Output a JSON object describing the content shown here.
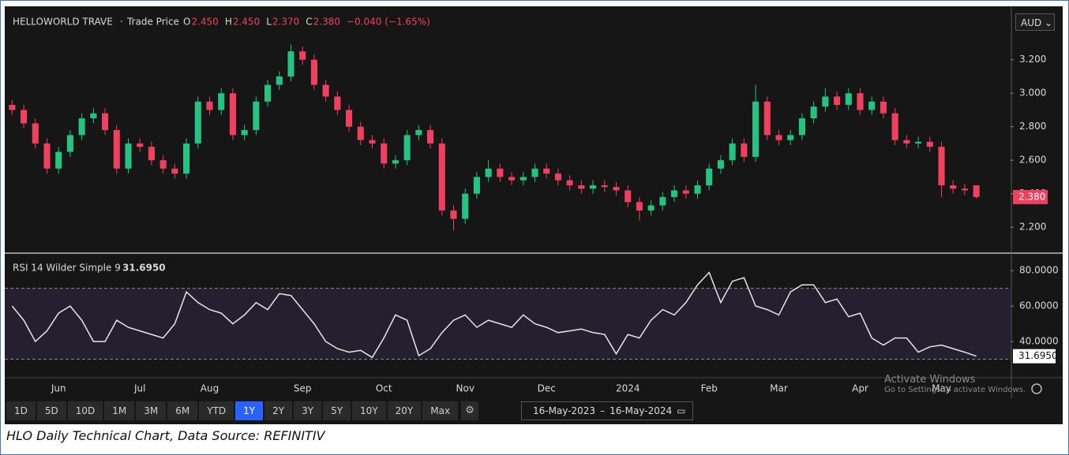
{
  "header": {
    "symbol": "HELLOWORLD TRAVE",
    "separator": "·",
    "price_type": "Trade Price",
    "ohlc": [
      {
        "key": "O",
        "label": "2.450"
      },
      {
        "key": "H",
        "label": "2.450"
      },
      {
        "key": "L",
        "label": "2.370"
      },
      {
        "key": "C",
        "label": "2.380"
      }
    ],
    "change": "−0.040 (−1.65%)",
    "currency": "AUD"
  },
  "chart_data": [
    {
      "type": "candlestick",
      "up_color": "#26c281",
      "down_color": "#f0405f",
      "xlim": [
        -0.5,
        83.5
      ],
      "ylim": [
        2.05,
        3.5
      ],
      "yticks": [
        {
          "value": 2.2,
          "label": "2.200"
        },
        {
          "value": 2.4,
          "label": "2.400"
        },
        {
          "value": 2.6,
          "label": "2.600"
        },
        {
          "value": 2.8,
          "label": "2.800"
        },
        {
          "value": 3.0,
          "label": "3.000"
        },
        {
          "value": 3.2,
          "label": "3.200"
        }
      ],
      "last_label": "2.380",
      "open": [
        2.93,
        2.9,
        2.82,
        2.7,
        2.55,
        2.65,
        2.75,
        2.85,
        2.88,
        2.78,
        2.55,
        2.7,
        2.68,
        2.6,
        2.55,
        2.52,
        2.7,
        2.95,
        2.9,
        3.0,
        2.75,
        2.78,
        2.95,
        3.05,
        3.1,
        3.25,
        3.2,
        3.05,
        2.98,
        2.9,
        2.8,
        2.72,
        2.7,
        2.58,
        2.6,
        2.75,
        2.78,
        2.7,
        2.3,
        2.25,
        2.4,
        2.5,
        2.55,
        2.5,
        2.48,
        2.5,
        2.55,
        2.52,
        2.48,
        2.45,
        2.43,
        2.45,
        2.44,
        2.42,
        2.35,
        2.3,
        2.33,
        2.38,
        2.42,
        2.4,
        2.45,
        2.55,
        2.6,
        2.7,
        2.62,
        2.95,
        2.75,
        2.72,
        2.75,
        2.85,
        2.92,
        2.98,
        2.93,
        3.0,
        2.9,
        2.95,
        2.88,
        2.72,
        2.7,
        2.71,
        2.68,
        2.45,
        2.43,
        2.45
      ],
      "high": [
        2.96,
        2.93,
        2.85,
        2.73,
        2.68,
        2.78,
        2.88,
        2.91,
        2.91,
        2.81,
        2.73,
        2.73,
        2.71,
        2.63,
        2.58,
        2.73,
        2.98,
        2.98,
        3.03,
        3.03,
        2.81,
        2.98,
        3.08,
        3.13,
        3.29,
        3.28,
        3.23,
        3.08,
        3.01,
        2.93,
        2.83,
        2.75,
        2.73,
        2.63,
        2.78,
        2.81,
        2.81,
        2.73,
        2.33,
        2.43,
        2.53,
        2.6,
        2.58,
        2.53,
        2.53,
        2.58,
        2.58,
        2.55,
        2.51,
        2.48,
        2.48,
        2.48,
        2.47,
        2.45,
        2.38,
        2.36,
        2.41,
        2.45,
        2.45,
        2.48,
        2.58,
        2.63,
        2.73,
        2.73,
        3.05,
        2.98,
        2.78,
        2.78,
        2.88,
        2.95,
        3.03,
        3.01,
        3.03,
        3.03,
        2.98,
        2.98,
        2.91,
        2.75,
        2.74,
        2.74,
        2.71,
        2.48,
        2.46,
        2.45
      ],
      "low": [
        2.87,
        2.79,
        2.67,
        2.52,
        2.52,
        2.62,
        2.72,
        2.82,
        2.75,
        2.52,
        2.52,
        2.65,
        2.57,
        2.52,
        2.49,
        2.49,
        2.67,
        2.87,
        2.87,
        2.72,
        2.72,
        2.75,
        2.92,
        3.02,
        3.07,
        3.17,
        3.02,
        2.95,
        2.87,
        2.77,
        2.69,
        2.67,
        2.55,
        2.55,
        2.57,
        2.72,
        2.67,
        2.27,
        2.18,
        2.22,
        2.37,
        2.47,
        2.47,
        2.45,
        2.45,
        2.47,
        2.49,
        2.45,
        2.42,
        2.4,
        2.4,
        2.41,
        2.39,
        2.32,
        2.24,
        2.27,
        2.3,
        2.35,
        2.37,
        2.37,
        2.42,
        2.52,
        2.57,
        2.59,
        2.59,
        2.72,
        2.69,
        2.69,
        2.72,
        2.82,
        2.89,
        2.9,
        2.9,
        2.87,
        2.87,
        2.85,
        2.69,
        2.67,
        2.67,
        2.65,
        2.38,
        2.4,
        2.39,
        2.37
      ],
      "close": [
        2.9,
        2.82,
        2.7,
        2.55,
        2.65,
        2.75,
        2.85,
        2.88,
        2.78,
        2.55,
        2.7,
        2.68,
        2.6,
        2.55,
        2.52,
        2.7,
        2.95,
        2.9,
        3.0,
        2.75,
        2.78,
        2.95,
        3.05,
        3.1,
        3.25,
        3.2,
        3.05,
        2.98,
        2.9,
        2.8,
        2.72,
        2.7,
        2.58,
        2.6,
        2.75,
        2.78,
        2.7,
        2.3,
        2.25,
        2.4,
        2.5,
        2.55,
        2.5,
        2.48,
        2.5,
        2.55,
        2.52,
        2.48,
        2.45,
        2.43,
        2.45,
        2.44,
        2.42,
        2.35,
        2.3,
        2.33,
        2.38,
        2.42,
        2.4,
        2.45,
        2.55,
        2.6,
        2.7,
        2.62,
        2.95,
        2.75,
        2.72,
        2.75,
        2.85,
        2.92,
        2.98,
        2.93,
        3.0,
        2.9,
        2.95,
        2.88,
        2.72,
        2.7,
        2.71,
        2.68,
        2.45,
        2.43,
        2.42,
        2.38
      ]
    },
    {
      "type": "line",
      "title": "RSI 14 Wilder Simple 9",
      "value_label": "31.6950",
      "color": "#e6e6e6",
      "band_color": "#7e57c2",
      "bands": [
        30,
        70
      ],
      "xlim": [
        -0.5,
        83.5
      ],
      "ylim": [
        20,
        89
      ],
      "yticks": [
        {
          "value": 40,
          "label": "40.0000"
        },
        {
          "value": 60,
          "label": "60.0000"
        },
        {
          "value": 80,
          "label": "80.0000"
        }
      ],
      "xticks": [
        {
          "value": 4,
          "label": "Jun"
        },
        {
          "value": 11,
          "label": "Jul"
        },
        {
          "value": 17,
          "label": "Aug"
        },
        {
          "value": 25,
          "label": "Sep"
        },
        {
          "value": 32,
          "label": "Oct"
        },
        {
          "value": 39,
          "label": "Nov"
        },
        {
          "value": 46,
          "label": "Dec"
        },
        {
          "value": 53,
          "label": "2024"
        },
        {
          "value": 60,
          "label": "Feb"
        },
        {
          "value": 66,
          "label": "Mar"
        },
        {
          "value": 73,
          "label": "Apr"
        },
        {
          "value": 80,
          "label": "May"
        }
      ],
      "values": [
        60,
        52,
        40,
        46,
        56,
        60,
        52,
        40,
        40,
        52,
        48,
        46,
        44,
        42,
        50,
        68,
        62,
        58,
        56,
        50,
        55,
        62,
        58,
        67,
        66,
        58,
        50,
        40,
        36,
        34,
        35,
        31,
        42,
        55,
        52,
        32,
        36,
        45,
        52,
        55,
        48,
        52,
        50,
        48,
        55,
        50,
        48,
        45,
        46,
        47,
        45,
        44,
        33,
        44,
        42,
        52,
        58,
        55,
        62,
        72,
        79,
        62,
        74,
        76,
        60,
        58,
        55,
        68,
        72,
        72,
        62,
        64,
        54,
        56,
        42,
        38,
        42,
        42,
        34,
        37,
        38,
        36,
        34,
        31.695
      ]
    }
  ],
  "toolbar": {
    "periods": [
      "1D",
      "5D",
      "10D",
      "1M",
      "3M",
      "6M",
      "YTD",
      "1Y",
      "2Y",
      "3Y",
      "5Y",
      "10Y",
      "20Y",
      "Max"
    ],
    "active": "1Y",
    "date_from": "16-May-2023",
    "date_sep": "–",
    "date_to": "16-May-2024"
  },
  "watermark": {
    "title": "Activate Windows",
    "text": "Go to Settings to activate Windows."
  },
  "caption": "HLO Daily Technical Chart, Data Source: REFINITIV"
}
